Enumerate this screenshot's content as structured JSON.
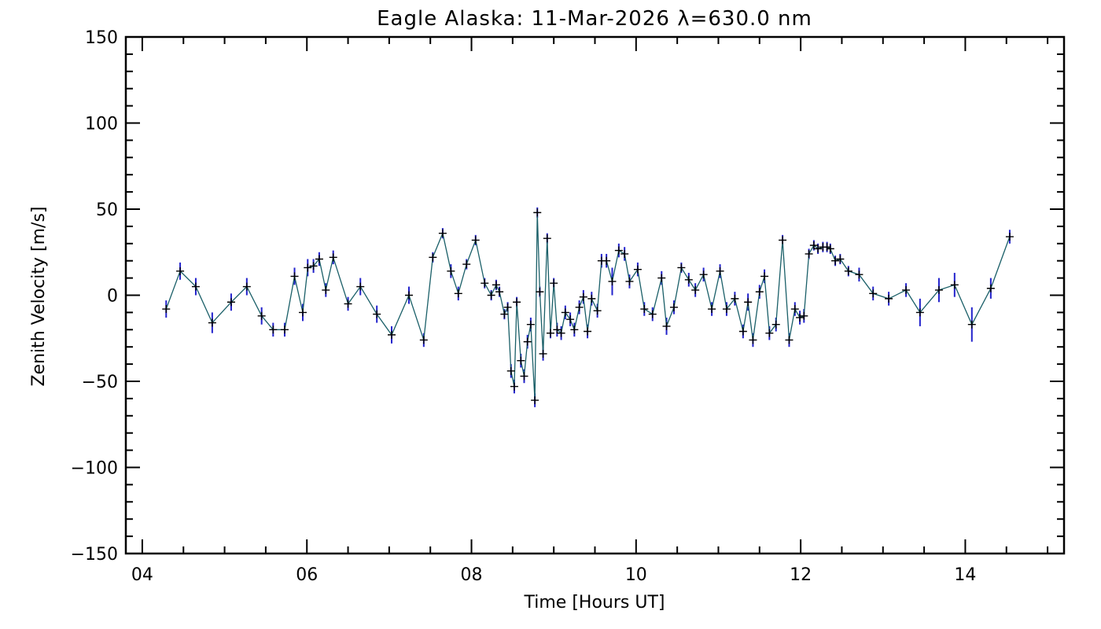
{
  "chart_data": {
    "type": "line",
    "title": "Eagle Alaska: 11-Mar-2026 λ=630.0 nm",
    "xlabel": "Time [Hours UT]",
    "ylabel": "Zenith Velocity [m/s]",
    "xlim": [
      3.8,
      15.2
    ],
    "ylim": [
      -150,
      150
    ],
    "x_ticks": [
      4,
      6,
      8,
      10,
      12,
      14
    ],
    "x_tick_labels": [
      "04",
      "06",
      "08",
      "10",
      "12",
      "14"
    ],
    "y_ticks": [
      -150,
      -100,
      -50,
      0,
      50,
      100,
      150
    ],
    "y_tick_labels": [
      "−150",
      "−100",
      "−50",
      "0",
      "50",
      "100",
      "150"
    ],
    "grid": false,
    "colors": {
      "line": "#1a5f68",
      "error_bar": "#2222cc",
      "marker": "#000000"
    },
    "series": [
      {
        "name": "Zenith Velocity",
        "x": [
          4.29,
          4.46,
          4.65,
          4.85,
          5.08,
          5.27,
          5.45,
          5.59,
          5.73,
          5.85,
          5.95,
          6.01,
          6.08,
          6.15,
          6.23,
          6.32,
          6.5,
          6.65,
          6.85,
          7.03,
          7.24,
          7.42,
          7.53,
          7.65,
          7.75,
          7.84,
          7.94,
          8.05,
          8.16,
          8.24,
          8.3,
          8.34,
          8.4,
          8.44,
          8.48,
          8.52,
          8.55,
          8.6,
          8.64,
          8.68,
          8.72,
          8.77,
          8.8,
          8.83,
          8.87,
          8.92,
          8.96,
          9.0,
          9.04,
          9.09,
          9.14,
          9.2,
          9.25,
          9.31,
          9.36,
          9.41,
          9.46,
          9.53,
          9.58,
          9.64,
          9.71,
          9.79,
          9.86,
          9.92,
          10.02,
          10.1,
          10.2,
          10.31,
          10.37,
          10.46,
          10.55,
          10.64,
          10.72,
          10.82,
          10.92,
          11.02,
          11.1,
          11.2,
          11.3,
          11.36,
          11.42,
          11.5,
          11.56,
          11.62,
          11.7,
          11.78,
          11.86,
          11.93,
          11.99,
          12.04,
          12.1,
          12.16,
          12.21,
          12.27,
          12.32,
          12.36,
          12.42,
          12.48,
          12.58,
          12.71,
          12.88,
          13.07,
          13.28,
          13.45,
          13.68,
          13.87,
          14.08,
          14.31,
          14.54
        ],
        "y": [
          -8,
          14,
          5,
          -16,
          -4,
          5,
          -12,
          -20,
          -20,
          11,
          -10,
          16,
          17,
          21,
          3,
          22,
          -5,
          5,
          -11,
          -23,
          0,
          -26,
          22,
          36,
          14,
          1,
          18,
          32,
          7,
          0,
          6,
          2,
          -11,
          -7,
          -44,
          -53,
          -4,
          -38,
          -47,
          -27,
          -17,
          -61,
          48,
          2,
          -34,
          33,
          -22,
          7,
          -20,
          -22,
          -10,
          -14,
          -20,
          -7,
          -1,
          -21,
          -2,
          -9,
          20,
          20,
          8,
          26,
          24,
          8,
          15,
          -8,
          -11,
          10,
          -18,
          -7,
          16,
          9,
          3,
          12,
          -8,
          14,
          -8,
          -2,
          -21,
          -4,
          -26,
          2,
          11,
          -22,
          -17,
          32,
          -26,
          -8,
          -13,
          -12,
          24,
          29,
          27,
          28,
          28,
          27,
          20,
          21,
          14,
          12,
          1,
          -2,
          3,
          -10,
          3,
          6,
          -17,
          4,
          34
        ],
        "y_error": [
          5,
          5,
          5,
          6,
          5,
          5,
          5,
          4,
          4,
          5,
          5,
          5,
          4,
          4,
          4,
          4,
          4,
          5,
          5,
          5,
          5,
          4,
          3,
          3,
          4,
          4,
          3,
          3,
          3,
          3,
          3,
          3,
          3,
          3,
          4,
          4,
          3,
          4,
          4,
          4,
          4,
          4,
          3,
          3,
          4,
          3,
          3,
          3,
          4,
          4,
          4,
          4,
          4,
          4,
          4,
          4,
          4,
          4,
          4,
          4,
          8,
          4,
          4,
          4,
          4,
          4,
          4,
          4,
          5,
          4,
          3,
          4,
          4,
          4,
          4,
          4,
          4,
          4,
          4,
          5,
          4,
          4,
          4,
          4,
          4,
          3,
          4,
          4,
          4,
          4,
          3,
          3,
          3,
          3,
          3,
          3,
          3,
          3,
          3,
          4,
          4,
          4,
          4,
          8,
          7,
          7,
          10,
          6,
          4
        ]
      }
    ]
  }
}
